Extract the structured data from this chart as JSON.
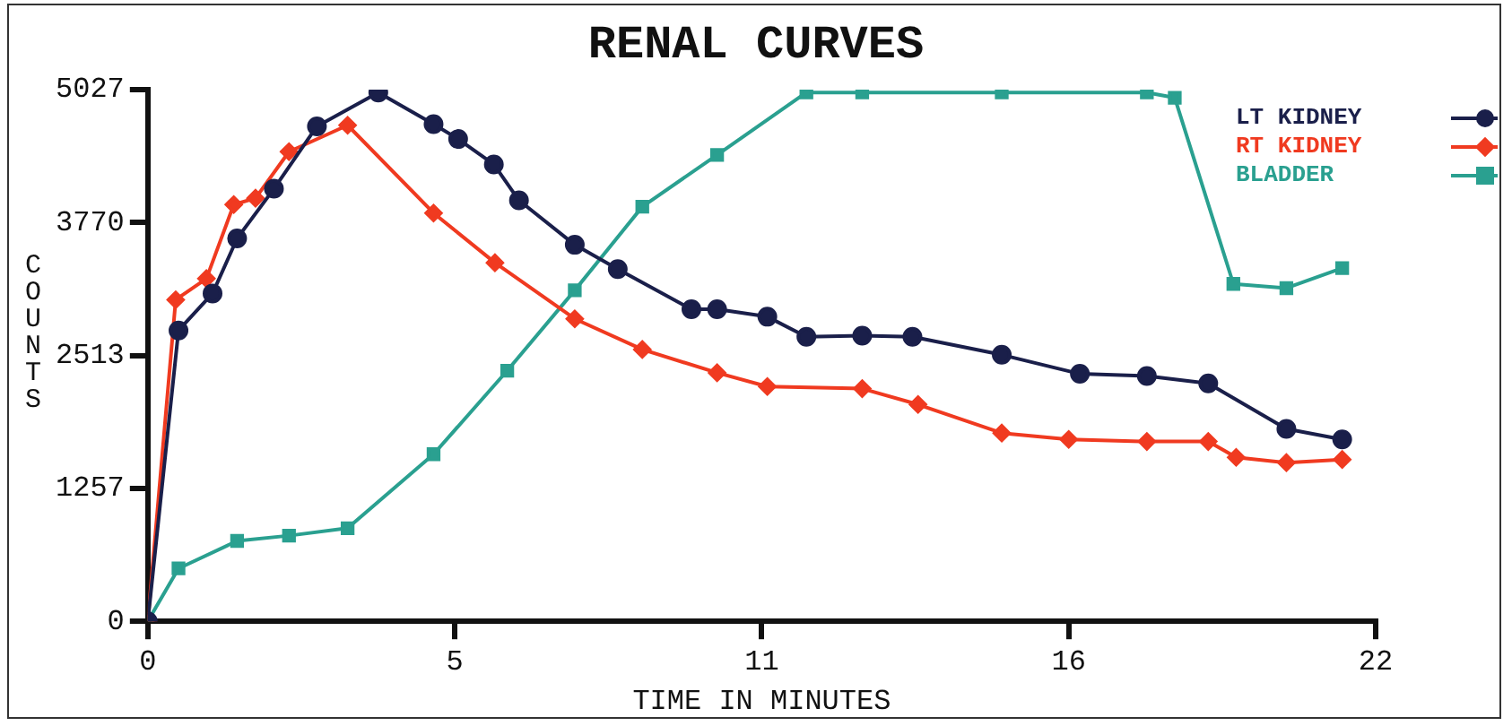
{
  "chart_data": {
    "type": "line",
    "title": "RENAL CURVES",
    "xlabel": "TIME IN MINUTES",
    "ylabel": "COUNTS",
    "xlim": [
      0,
      22
    ],
    "xticks": [
      0,
      {
        "value": 5.5,
        "label": "5"
      },
      11,
      {
        "value": 16.5,
        "label": "16"
      },
      22
    ],
    "ylim": [
      0,
      5027
    ],
    "yticks": [
      0,
      {
        "value": 1256.75,
        "label": "1257"
      },
      {
        "value": 2513.5,
        "label": "2513"
      },
      {
        "value": 3770.25,
        "label": "3770"
      },
      5027
    ],
    "grid": false,
    "legend": "top right",
    "line_style": "solid",
    "series": [
      {
        "name": "LT KIDNEY",
        "color": "#1a1f4a",
        "marker": "circle",
        "x": [
          0,
          0.55,
          1.16,
          1.6,
          2.26,
          3.03,
          4.13,
          5.12,
          5.56,
          6.2,
          6.65,
          7.65,
          8.42,
          9.74,
          10.2,
          11.1,
          11.8,
          12.8,
          13.7,
          15.3,
          16.7,
          17.9,
          19,
          20.4,
          21.4
        ],
        "values": [
          0,
          2750,
          3100,
          3620,
          4090,
          4680,
          5000,
          4700,
          4560,
          4320,
          3980,
          3560,
          3330,
          2950,
          2950,
          2880,
          2690,
          2700,
          2690,
          2520,
          2340,
          2320,
          2250,
          1820,
          1720
        ]
      },
      {
        "name": "RT KIDNEY",
        "color": "#f03a20",
        "marker": "diamond",
        "x": [
          0,
          0.5,
          1.05,
          1.54,
          1.93,
          2.53,
          3.58,
          5.12,
          6.22,
          7.65,
          8.86,
          10.2,
          11.1,
          12.8,
          13.8,
          15.3,
          16.5,
          17.9,
          19,
          19.5,
          20.4,
          21.4
        ],
        "values": [
          0,
          3040,
          3240,
          3940,
          4000,
          4440,
          4690,
          3860,
          3390,
          2860,
          2570,
          2350,
          2220,
          2200,
          2050,
          1780,
          1720,
          1700,
          1700,
          1550,
          1500,
          1530
        ]
      },
      {
        "name": "BLADDER",
        "color": "#2aa090",
        "marker": "square",
        "x": [
          0,
          0.55,
          1.6,
          2.53,
          3.58,
          5.12,
          6.44,
          7.65,
          8.86,
          10.2,
          11.8,
          12.8,
          15.3,
          17.9,
          18.4,
          19.45,
          20.4,
          21.4
        ],
        "values": [
          0,
          500,
          760,
          810,
          880,
          1580,
          2370,
          3130,
          3920,
          4410,
          5000,
          5000,
          5000,
          5000,
          4950,
          3190,
          3150,
          3340
        ]
      }
    ]
  }
}
